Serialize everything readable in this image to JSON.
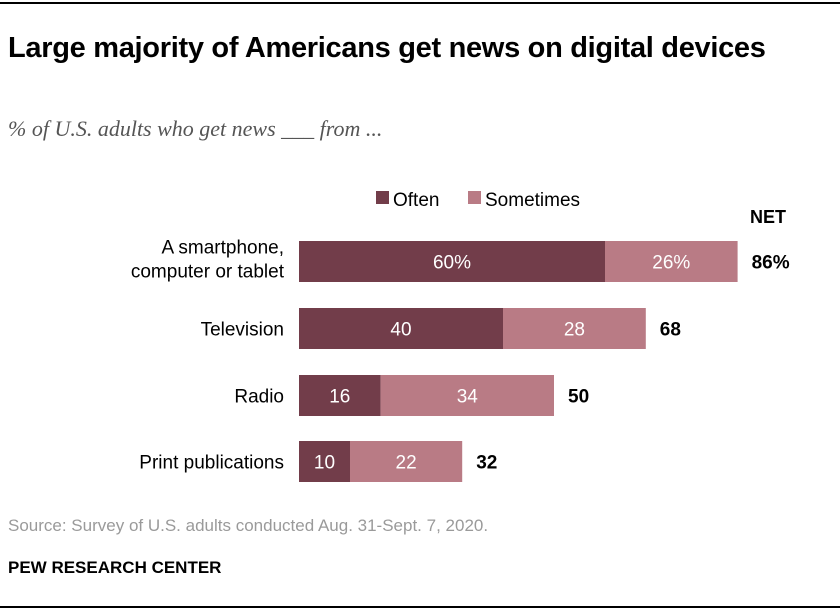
{
  "title": "Large majority of Americans get news on digital devices",
  "subtitle": "% of U.S. adults who get news ___ from ...",
  "source": "Source: Survey of U.S. adults conducted Aug. 31-Sept. 7, 2020.",
  "organization": "PEW RESEARCH CENTER",
  "chart_data": {
    "type": "bar",
    "orientation": "horizontal",
    "stacked": true,
    "categories": [
      [
        "A smartphone,",
        "computer or tablet"
      ],
      [
        "Television"
      ],
      [
        "Radio"
      ],
      [
        "Print publications"
      ]
    ],
    "series": [
      {
        "name": "Often",
        "color": "#723d4a",
        "values": [
          60,
          40,
          16,
          10
        ],
        "labels": [
          "60%",
          "40",
          "16",
          "10"
        ]
      },
      {
        "name": "Sometimes",
        "color": "#b97b85",
        "values": [
          26,
          28,
          34,
          22
        ],
        "labels": [
          "26%",
          "28",
          "34",
          "22"
        ]
      }
    ],
    "net_header": "NET",
    "net_values": [
      86,
      68,
      50,
      32
    ],
    "net_labels": [
      "86%",
      "68",
      "50",
      "32"
    ],
    "xlim": [
      0,
      100
    ],
    "grid": false,
    "legend_position": "top"
  }
}
